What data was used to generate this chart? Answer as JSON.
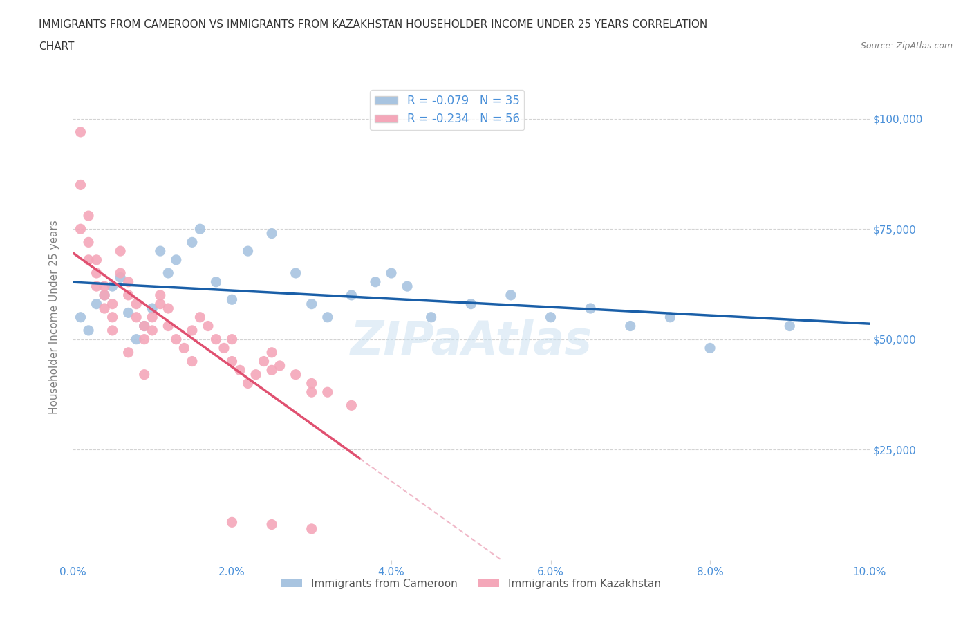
{
  "title_line1": "IMMIGRANTS FROM CAMEROON VS IMMIGRANTS FROM KAZAKHSTAN HOUSEHOLDER INCOME UNDER 25 YEARS CORRELATION",
  "title_line2": "CHART",
  "source_text": "Source: ZipAtlas.com",
  "ylabel": "Householder Income Under 25 years",
  "xlim": [
    0.0,
    0.1
  ],
  "ylim": [
    0,
    110000
  ],
  "yticks": [
    0,
    25000,
    50000,
    75000,
    100000
  ],
  "ytick_labels": [
    "",
    "$25,000",
    "$50,000",
    "$75,000",
    "$100,000"
  ],
  "xticks": [
    0.0,
    0.02,
    0.04,
    0.06,
    0.08,
    0.1
  ],
  "xtick_labels": [
    "0.0%",
    "2.0%",
    "4.0%",
    "6.0%",
    "8.0%",
    "10.0%"
  ],
  "cameroon_color": "#a8c4e0",
  "kazakhstan_color": "#f4a7b9",
  "cameroon_line_color": "#1a5fa8",
  "kazakhstan_line_color": "#e05070",
  "kazakhstan_dashed_color": "#f0b8c8",
  "R_cameroon": -0.079,
  "N_cameroon": 35,
  "R_kazakhstan": -0.234,
  "N_kazakhstan": 56,
  "legend_label_cameroon": "Immigrants from Cameroon",
  "legend_label_kazakhstan": "Immigrants from Kazakhstan",
  "cameroon_x": [
    0.001,
    0.002,
    0.003,
    0.004,
    0.005,
    0.006,
    0.007,
    0.008,
    0.009,
    0.01,
    0.011,
    0.012,
    0.013,
    0.015,
    0.016,
    0.018,
    0.02,
    0.022,
    0.025,
    0.028,
    0.03,
    0.032,
    0.035,
    0.038,
    0.04,
    0.042,
    0.045,
    0.05,
    0.055,
    0.06,
    0.065,
    0.07,
    0.075,
    0.08,
    0.09
  ],
  "cameroon_y": [
    55000,
    52000,
    58000,
    60000,
    62000,
    64000,
    56000,
    50000,
    53000,
    57000,
    70000,
    65000,
    68000,
    72000,
    75000,
    63000,
    59000,
    70000,
    74000,
    65000,
    58000,
    55000,
    60000,
    63000,
    65000,
    62000,
    55000,
    58000,
    60000,
    55000,
    57000,
    53000,
    55000,
    48000,
    53000
  ],
  "kazakhstan_x": [
    0.001,
    0.001,
    0.002,
    0.002,
    0.003,
    0.003,
    0.004,
    0.004,
    0.005,
    0.005,
    0.006,
    0.006,
    0.007,
    0.007,
    0.008,
    0.008,
    0.009,
    0.009,
    0.01,
    0.01,
    0.011,
    0.011,
    0.012,
    0.012,
    0.013,
    0.014,
    0.015,
    0.016,
    0.017,
    0.018,
    0.019,
    0.02,
    0.021,
    0.022,
    0.023,
    0.024,
    0.025,
    0.026,
    0.028,
    0.03,
    0.032,
    0.035,
    0.001,
    0.002,
    0.003,
    0.004,
    0.005,
    0.007,
    0.009,
    0.015,
    0.02,
    0.025,
    0.03,
    0.025,
    0.03,
    0.02
  ],
  "kazakhstan_y": [
    97000,
    85000,
    78000,
    72000,
    68000,
    65000,
    62000,
    60000,
    58000,
    55000,
    70000,
    65000,
    63000,
    60000,
    58000,
    55000,
    53000,
    50000,
    52000,
    55000,
    60000,
    58000,
    57000,
    53000,
    50000,
    48000,
    52000,
    55000,
    53000,
    50000,
    48000,
    45000,
    43000,
    40000,
    42000,
    45000,
    47000,
    44000,
    42000,
    40000,
    38000,
    35000,
    75000,
    68000,
    62000,
    57000,
    52000,
    47000,
    42000,
    45000,
    50000,
    43000,
    38000,
    8000,
    7000,
    8500
  ]
}
